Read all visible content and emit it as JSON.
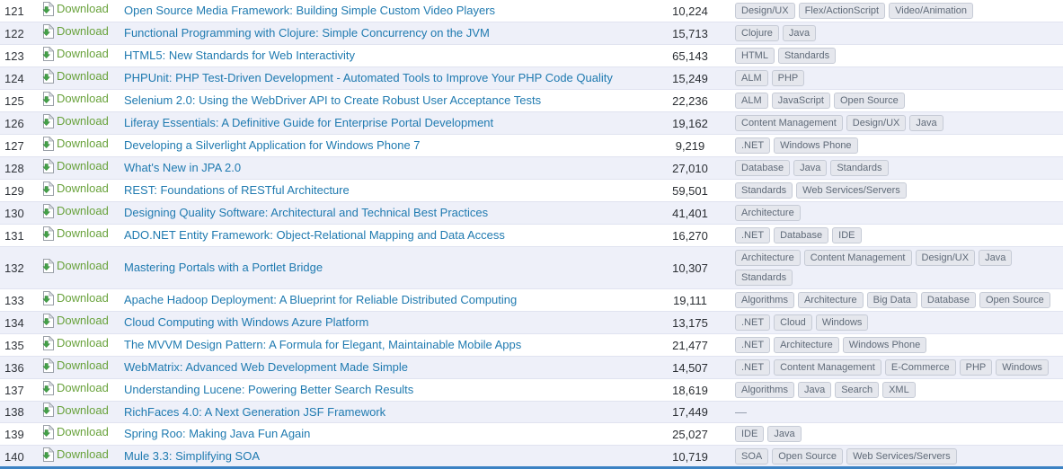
{
  "colors": {
    "title_link": "#1f7ab0",
    "download_link": "#68a23b",
    "stripe_background": "#eef0f9",
    "row_border": "#e0e3f0",
    "tag_background": "#e5e7ed",
    "tag_border": "#c6cbd6",
    "tag_text": "#5f6a78",
    "bottom_accent": "#3b82c4"
  },
  "icons": {
    "download_file": "download-file-icon"
  },
  "table": {
    "download_label": "Download",
    "empty_tags_placeholder": "—",
    "rows": [
      {
        "number": "121",
        "title": "Open Source Media Framework: Building Simple Custom Video Players",
        "count": "10,224",
        "tags": [
          "Design/UX",
          "Flex/ActionScript",
          "Video/Animation"
        ]
      },
      {
        "number": "122",
        "title": "Functional Programming with Clojure: Simple Concurrency on the JVM",
        "count": "15,713",
        "tags": [
          "Clojure",
          "Java"
        ]
      },
      {
        "number": "123",
        "title": "HTML5: New Standards for Web Interactivity",
        "count": "65,143",
        "tags": [
          "HTML",
          "Standards"
        ]
      },
      {
        "number": "124",
        "title": "PHPUnit: PHP Test-Driven Development - Automated Tools to Improve Your PHP Code Quality",
        "count": "15,249",
        "tags": [
          "ALM",
          "PHP"
        ]
      },
      {
        "number": "125",
        "title": "Selenium 2.0: Using the WebDriver API to Create Robust User Acceptance Tests",
        "count": "22,236",
        "tags": [
          "ALM",
          "JavaScript",
          "Open Source"
        ]
      },
      {
        "number": "126",
        "title": "Liferay Essentials: A Definitive Guide for Enterprise Portal Development",
        "count": "19,162",
        "tags": [
          "Content Management",
          "Design/UX",
          "Java"
        ]
      },
      {
        "number": "127",
        "title": "Developing a Silverlight Application for Windows Phone 7",
        "count": "9,219",
        "tags": [
          ".NET",
          "Windows Phone"
        ]
      },
      {
        "number": "128",
        "title": "What's New in JPA 2.0",
        "count": "27,010",
        "tags": [
          "Database",
          "Java",
          "Standards"
        ]
      },
      {
        "number": "129",
        "title": "REST: Foundations of RESTful Architecture",
        "count": "59,501",
        "tags": [
          "Standards",
          "Web Services/Servers"
        ]
      },
      {
        "number": "130",
        "title": "Designing Quality Software: Architectural and Technical Best Practices",
        "count": "41,401",
        "tags": [
          "Architecture"
        ]
      },
      {
        "number": "131",
        "title": "ADO.NET Entity Framework: Object-Relational Mapping and Data Access",
        "count": "16,270",
        "tags": [
          ".NET",
          "Database",
          "IDE"
        ]
      },
      {
        "number": "132",
        "title": "Mastering Portals with a Portlet Bridge",
        "count": "10,307",
        "tags": [
          "Architecture",
          "Content Management",
          "Design/UX",
          "Java",
          "Standards"
        ]
      },
      {
        "number": "133",
        "title": "Apache Hadoop Deployment: A Blueprint for Reliable Distributed Computing",
        "count": "19,111",
        "tags": [
          "Algorithms",
          "Architecture",
          "Big Data",
          "Database",
          "Open Source"
        ]
      },
      {
        "number": "134",
        "title": "Cloud Computing with Windows Azure Platform",
        "count": "13,175",
        "tags": [
          ".NET",
          "Cloud",
          "Windows"
        ]
      },
      {
        "number": "135",
        "title": "The MVVM Design Pattern: A Formula for Elegant, Maintainable Mobile Apps",
        "count": "21,477",
        "tags": [
          ".NET",
          "Architecture",
          "Windows Phone"
        ]
      },
      {
        "number": "136",
        "title": "WebMatrix: Advanced Web Development Made Simple",
        "count": "14,507",
        "tags": [
          ".NET",
          "Content Management",
          "E-Commerce",
          "PHP",
          "Windows"
        ]
      },
      {
        "number": "137",
        "title": "Understanding Lucene: Powering Better Search Results",
        "count": "18,619",
        "tags": [
          "Algorithms",
          "Java",
          "Search",
          "XML"
        ]
      },
      {
        "number": "138",
        "title": "RichFaces 4.0: A Next Generation JSF Framework",
        "count": "17,449",
        "tags": []
      },
      {
        "number": "139",
        "title": "Spring Roo: Making Java Fun Again",
        "count": "25,027",
        "tags": [
          "IDE",
          "Java"
        ]
      },
      {
        "number": "140",
        "title": "Mule 3.3: Simplifying SOA",
        "count": "10,719",
        "tags": [
          "SOA",
          "Open Source",
          "Web Services/Servers"
        ]
      }
    ]
  }
}
